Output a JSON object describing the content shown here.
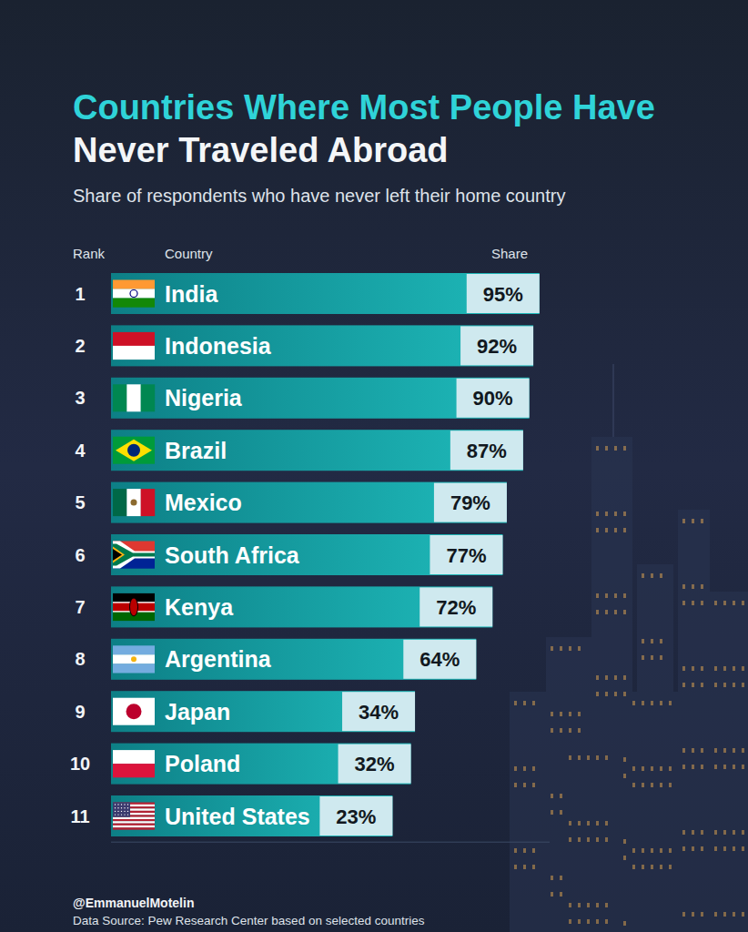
{
  "chart_data": {
    "type": "bar",
    "orientation": "horizontal",
    "title": "Countries Where Most People Have",
    "title_line2": "Never Traveled Abroad",
    "subtitle": "Share of respondents who have never left their home country",
    "column_headers": [
      "Rank",
      "Country",
      "Share"
    ],
    "ranks": [
      1,
      2,
      3,
      4,
      5,
      6,
      7,
      8,
      9,
      10,
      11
    ],
    "categories": [
      "India",
      "Indonesia",
      "Nigeria",
      "Brazil",
      "Mexico",
      "South Africa",
      "Kenya",
      "Argentina",
      "Japan",
      "Poland",
      "United States"
    ],
    "values": [
      95,
      92,
      90,
      87,
      79,
      77,
      72,
      64,
      34,
      32,
      23
    ],
    "value_labels": [
      "95%",
      "92%",
      "90%",
      "87%",
      "79%",
      "77%",
      "72%",
      "64%",
      "34%",
      "32%",
      "23%"
    ],
    "data_labels": true,
    "color": "#1fbcbc",
    "xlim": [
      -115,
      100
    ],
    "tick_labels": false,
    "grid": false,
    "credit": "@EmmanuelMotelin",
    "source": "Data Source: Pew Research Center based on selected countries"
  }
}
